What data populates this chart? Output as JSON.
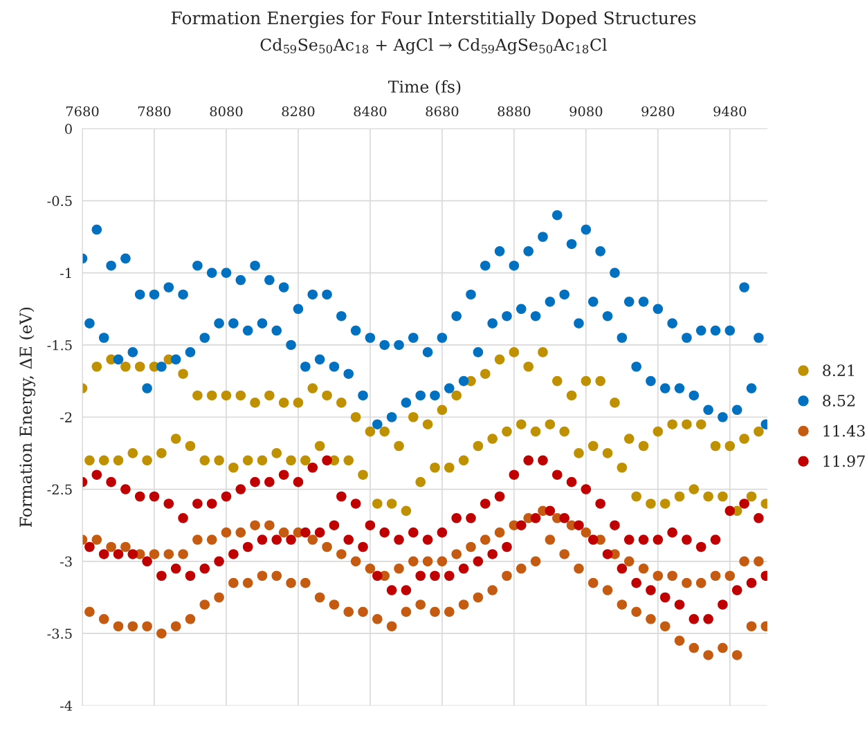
{
  "chart_data": {
    "type": "scatter",
    "title": "Formation Energies for Four Interstitially Doped Structures",
    "subtitle": "Cd$_{59}$Se$_{50}$Ac$_{18}$ + AgCl → Cd$_{59}$AgSe$_{50}$Ac$_{18}$Cl",
    "xlabel": "Time (fs)",
    "ylabel": "Formation Energy, ΔE (eV)",
    "x": [
      7680,
      7700,
      7720,
      7740,
      7760,
      7780,
      7800,
      7820,
      7840,
      7860,
      7880,
      7900,
      7920,
      7940,
      7960,
      7980,
      8000,
      8020,
      8040,
      8060,
      8080,
      8100,
      8120,
      8140,
      8160,
      8180,
      8200,
      8220,
      8240,
      8260,
      8280,
      8300,
      8320,
      8340,
      8360,
      8380,
      8400,
      8420,
      8440,
      8460,
      8480,
      8500,
      8520,
      8540,
      8560,
      8580,
      8600,
      8620,
      8640,
      8660,
      8680,
      8700,
      8720,
      8740,
      8760,
      8780,
      8800,
      8820,
      8840,
      8860,
      8880,
      8900,
      8920,
      8940,
      8960,
      8980,
      9000,
      9020,
      9040,
      9060,
      9080,
      9100,
      9120,
      9140,
      9160,
      9180,
      9200,
      9220,
      9240,
      9260,
      9280,
      9300,
      9320,
      9340,
      9360,
      9380,
      9400,
      9420,
      9440,
      9460,
      9480,
      9500,
      9520,
      9540,
      9560,
      9580
    ],
    "series": [
      {
        "name": "8.21",
        "color": "#bf9000",
        "values": [
          -1.8,
          -2.3,
          -1.65,
          -2.3,
          -1.6,
          -2.3,
          -1.65,
          -2.25,
          -1.65,
          -2.3,
          -1.65,
          -2.25,
          -1.6,
          -2.15,
          -1.7,
          -2.2,
          -1.85,
          -2.3,
          -1.85,
          -2.3,
          -1.85,
          -2.35,
          -1.85,
          -2.3,
          -1.9,
          -2.3,
          -1.85,
          -2.25,
          -1.9,
          -2.3,
          -1.9,
          -2.3,
          -1.8,
          -2.2,
          -1.85,
          -2.3,
          -1.9,
          -2.3,
          -2.0,
          -2.4,
          -2.1,
          -2.6,
          -2.1,
          -2.6,
          -2.2,
          -2.65,
          -2.0,
          -2.45,
          -2.05,
          -2.35,
          -1.95,
          -2.35,
          -1.85,
          -2.3,
          -1.75,
          -2.2,
          -1.7,
          -2.15,
          -1.6,
          -2.1,
          -1.55,
          -2.05,
          -1.65,
          -2.1,
          -1.55,
          -2.05,
          -1.75,
          -2.1,
          -1.85,
          -2.25,
          -1.75,
          -2.2,
          -1.75,
          -2.25,
          -1.9,
          -2.35,
          -2.15,
          -2.55,
          -2.2,
          -2.6,
          -2.1,
          -2.6,
          -2.05,
          -2.55,
          -2.05,
          -2.5,
          -2.05,
          -2.55,
          -2.2,
          -2.55,
          -2.2,
          -2.65,
          -2.15,
          -2.55,
          -2.1,
          -2.6
        ]
      },
      {
        "name": "8.52",
        "color": "#0070c0",
        "values": [
          -0.9,
          -1.35,
          -0.7,
          -1.45,
          -0.95,
          -1.6,
          -0.9,
          -1.55,
          -1.15,
          -1.8,
          -1.15,
          -1.65,
          -1.1,
          -1.6,
          -1.15,
          -1.55,
          -0.95,
          -1.45,
          -1.0,
          -1.35,
          -1.0,
          -1.35,
          -1.05,
          -1.4,
          -0.95,
          -1.35,
          -1.05,
          -1.4,
          -1.1,
          -1.5,
          -1.25,
          -1.65,
          -1.15,
          -1.6,
          -1.15,
          -1.65,
          -1.3,
          -1.7,
          -1.4,
          -1.85,
          -1.45,
          -2.05,
          -1.5,
          -2.0,
          -1.5,
          -1.9,
          -1.45,
          -1.85,
          -1.55,
          -1.85,
          -1.45,
          -1.8,
          -1.3,
          -1.75,
          -1.15,
          -1.55,
          -0.95,
          -1.35,
          -0.85,
          -1.3,
          -0.95,
          -1.25,
          -0.85,
          -1.3,
          -0.75,
          -1.2,
          -0.6,
          -1.15,
          -0.8,
          -1.35,
          -0.7,
          -1.2,
          -0.85,
          -1.3,
          -1.0,
          -1.45,
          -1.2,
          -1.65,
          -1.2,
          -1.75,
          -1.25,
          -1.8,
          -1.35,
          -1.8,
          -1.45,
          -1.85,
          -1.4,
          -1.95,
          -1.4,
          -2.0,
          -1.4,
          -1.95,
          -1.1,
          -1.8,
          -1.45,
          -2.05
        ]
      },
      {
        "name": "11.43",
        "color": "#c55a11",
        "values": [
          -2.85,
          -3.35,
          -2.85,
          -3.4,
          -2.9,
          -3.45,
          -2.9,
          -3.45,
          -2.95,
          -3.45,
          -2.95,
          -3.5,
          -2.95,
          -3.45,
          -2.95,
          -3.4,
          -2.85,
          -3.3,
          -2.85,
          -3.25,
          -2.8,
          -3.15,
          -2.8,
          -3.15,
          -2.75,
          -3.1,
          -2.75,
          -3.1,
          -2.8,
          -3.15,
          -2.8,
          -3.15,
          -2.85,
          -3.25,
          -2.9,
          -3.3,
          -2.95,
          -3.35,
          -3.0,
          -3.35,
          -3.05,
          -3.4,
          -3.1,
          -3.45,
          -3.05,
          -3.35,
          -3.0,
          -3.3,
          -3.0,
          -3.35,
          -3.0,
          -3.35,
          -2.95,
          -3.3,
          -2.9,
          -3.25,
          -2.85,
          -3.2,
          -2.8,
          -3.1,
          -2.75,
          -3.05,
          -2.7,
          -3.0,
          -2.65,
          -2.85,
          -2.7,
          -2.95,
          -2.75,
          -3.05,
          -2.8,
          -3.15,
          -2.85,
          -3.2,
          -2.95,
          -3.3,
          -3.0,
          -3.35,
          -3.05,
          -3.4,
          -3.1,
          -3.45,
          -3.1,
          -3.55,
          -3.15,
          -3.6,
          -3.15,
          -3.65,
          -3.1,
          -3.6,
          -3.1,
          -3.65,
          -3.0,
          -3.45,
          -3.0,
          -3.45
        ]
      },
      {
        "name": "11.97",
        "color": "#c00000",
        "values": [
          -2.45,
          -2.9,
          -2.4,
          -2.95,
          -2.45,
          -2.95,
          -2.5,
          -2.95,
          -2.55,
          -3.0,
          -2.55,
          -3.1,
          -2.6,
          -3.05,
          -2.7,
          -3.1,
          -2.6,
          -3.05,
          -2.6,
          -3.0,
          -2.55,
          -2.95,
          -2.5,
          -2.9,
          -2.45,
          -2.85,
          -2.45,
          -2.85,
          -2.4,
          -2.85,
          -2.45,
          -2.8,
          -2.35,
          -2.8,
          -2.3,
          -2.75,
          -2.55,
          -2.85,
          -2.6,
          -2.9,
          -2.75,
          -3.1,
          -2.8,
          -3.2,
          -2.85,
          -3.2,
          -2.8,
          -3.1,
          -2.85,
          -3.1,
          -2.8,
          -3.1,
          -2.7,
          -3.05,
          -2.7,
          -3.0,
          -2.6,
          -2.95,
          -2.55,
          -2.9,
          -2.4,
          -2.75,
          -2.3,
          -2.7,
          -2.3,
          -2.65,
          -2.4,
          -2.7,
          -2.45,
          -2.75,
          -2.5,
          -2.85,
          -2.6,
          -2.95,
          -2.75,
          -3.05,
          -2.85,
          -3.15,
          -2.85,
          -3.2,
          -2.85,
          -3.25,
          -2.8,
          -3.3,
          -2.85,
          -3.4,
          -2.9,
          -3.4,
          -2.85,
          -3.3,
          -2.65,
          -3.2,
          -2.6,
          -3.15,
          -2.7,
          -3.1
        ]
      }
    ],
    "xlim": [
      7680,
      9584
    ],
    "xticks": [
      7680,
      7880,
      8080,
      8280,
      8480,
      8680,
      8880,
      9080,
      9280,
      9480
    ],
    "ylim": [
      -4,
      0
    ],
    "yticks": [
      0,
      -0.5,
      -1,
      -1.5,
      -2,
      -2.5,
      -3,
      -3.5,
      -4
    ],
    "grid": true,
    "legend": "right",
    "marker": "circle"
  }
}
